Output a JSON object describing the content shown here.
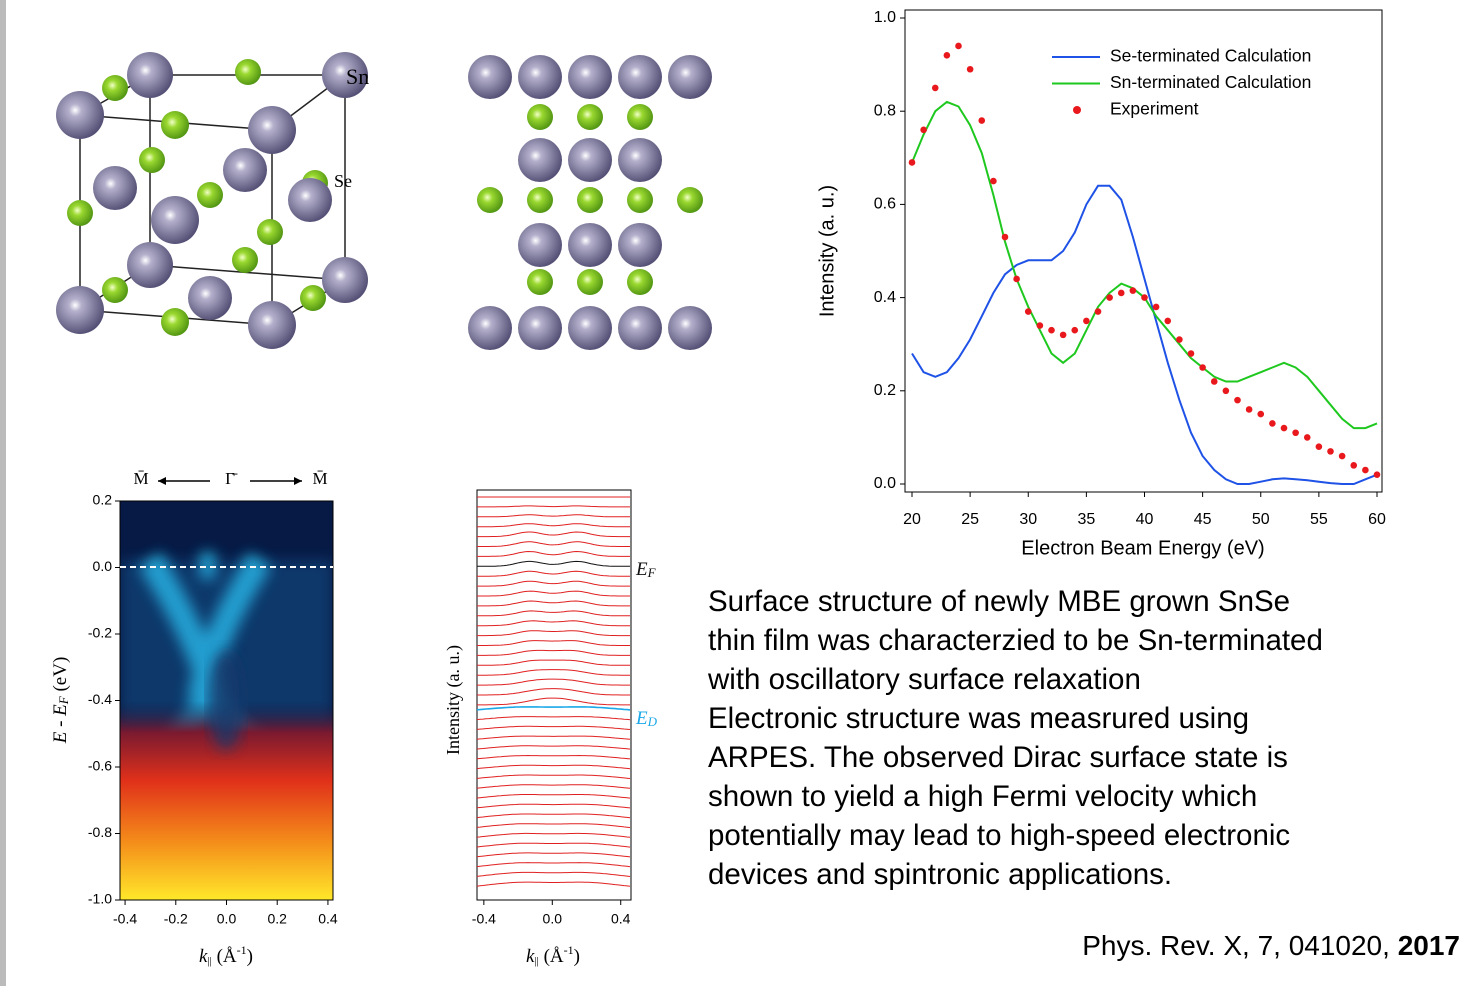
{
  "crystal_labels": {
    "sn": "Sn",
    "se": "Se"
  },
  "chart_data": [
    {
      "type": "line",
      "xlabel": "Electron Beam Energy (eV)",
      "ylabel": "Intensity (a. u.)",
      "xlim": [
        20,
        60
      ],
      "ylim": [
        0,
        1.0
      ],
      "xticks": [
        20,
        25,
        30,
        35,
        40,
        45,
        50,
        55,
        60
      ],
      "yticks": [
        {
          "value": 0,
          "label": "0.0"
        },
        0.2,
        0.4,
        0.6,
        0.8,
        {
          "value": 1.0,
          "label": "1.0"
        }
      ],
      "legend": "upper right",
      "x": [
        20,
        21,
        22,
        23,
        24,
        25,
        26,
        27,
        28,
        29,
        30,
        31,
        32,
        33,
        34,
        35,
        36,
        37,
        38,
        39,
        40,
        41,
        42,
        43,
        44,
        45,
        46,
        47,
        48,
        49,
        50,
        51,
        52,
        53,
        54,
        55,
        56,
        57,
        58,
        59,
        60
      ],
      "series": [
        {
          "name": "Se-terminated Calculation",
          "color": "#1f52e6",
          "style": "line",
          "values": [
            0.28,
            0.24,
            0.23,
            0.24,
            0.27,
            0.31,
            0.36,
            0.41,
            0.45,
            0.47,
            0.48,
            0.48,
            0.48,
            0.5,
            0.54,
            0.6,
            0.64,
            0.64,
            0.61,
            0.53,
            0.44,
            0.35,
            0.26,
            0.18,
            0.11,
            0.06,
            0.03,
            0.01,
            0.0,
            0.0,
            0.005,
            0.01,
            0.012,
            0.01,
            0.008,
            0.005,
            0.002,
            0.0,
            0.0,
            0.01,
            0.02
          ]
        },
        {
          "name": "Sn-terminated Calculation",
          "color": "#1ec81e",
          "style": "line",
          "values": [
            0.69,
            0.75,
            0.8,
            0.82,
            0.81,
            0.77,
            0.71,
            0.62,
            0.52,
            0.44,
            0.38,
            0.33,
            0.28,
            0.26,
            0.28,
            0.33,
            0.38,
            0.41,
            0.43,
            0.42,
            0.4,
            0.36,
            0.33,
            0.3,
            0.27,
            0.25,
            0.23,
            0.22,
            0.22,
            0.23,
            0.24,
            0.25,
            0.26,
            0.25,
            0.23,
            0.2,
            0.17,
            0.14,
            0.12,
            0.12,
            0.13
          ]
        },
        {
          "name": "Experiment",
          "color": "#e8181c",
          "style": "markers",
          "values": [
            0.69,
            0.76,
            0.85,
            0.92,
            0.94,
            0.89,
            0.78,
            0.65,
            0.53,
            0.44,
            0.37,
            0.34,
            0.33,
            0.32,
            0.33,
            0.35,
            0.37,
            0.4,
            0.41,
            0.415,
            0.4,
            0.38,
            0.35,
            0.31,
            0.28,
            0.25,
            0.22,
            0.2,
            0.18,
            0.16,
            0.15,
            0.13,
            0.12,
            0.11,
            0.1,
            0.08,
            0.07,
            0.06,
            0.04,
            0.03,
            0.02
          ]
        }
      ]
    },
    {
      "type": "heatmap",
      "top_labels": [
        "M̄",
        "Γ̄",
        "M̄"
      ],
      "ylabel_parts": [
        "E - E",
        "F",
        " (eV)"
      ],
      "xlabel_parts": [
        "k",
        "||",
        " (Å",
        "-1",
        ")"
      ],
      "xlim": [
        -0.42,
        0.42
      ],
      "ylim": [
        -1.0,
        0.2
      ],
      "xticks": [
        -0.4,
        -0.2,
        {
          "value": 0,
          "label": "0.0"
        },
        0.2,
        0.4
      ],
      "yticks": [
        0.2,
        {
          "value": 0,
          "label": "0.0"
        },
        -0.2,
        -0.4,
        -0.6,
        -0.8,
        {
          "value": -1.0,
          "label": "-1.0"
        }
      ]
    },
    {
      "type": "stacked-curves",
      "ylabel": "Intensity (a. u.)",
      "xlabel_parts": [
        "k",
        "||",
        " (Å",
        "-1",
        ")"
      ],
      "xlim": [
        -0.44,
        0.46
      ],
      "xticks": [
        -0.4,
        {
          "value": 0,
          "label": "0.0"
        },
        0.4
      ],
      "annotations": [
        {
          "text": "E",
          "sub": "F",
          "color": "#111111"
        },
        {
          "text": "E",
          "sub": "D",
          "color": "#1aa8e8"
        }
      ]
    }
  ],
  "paragraph": [
    "Surface structure of newly MBE grown SnSe",
    "thin film was characterzied to be Sn-terminated",
    "with oscillatory surface relaxation",
    "Electronic structure was measrured using",
    "ARPES. The observed Dirac surface state is",
    "shown to yield a high Fermi velocity which",
    "potentially may lead to high-speed electronic",
    "devices and spintronic applications."
  ],
  "citation": {
    "text": "Phys. Rev. X, 7, 041020,",
    "year": "2017"
  }
}
